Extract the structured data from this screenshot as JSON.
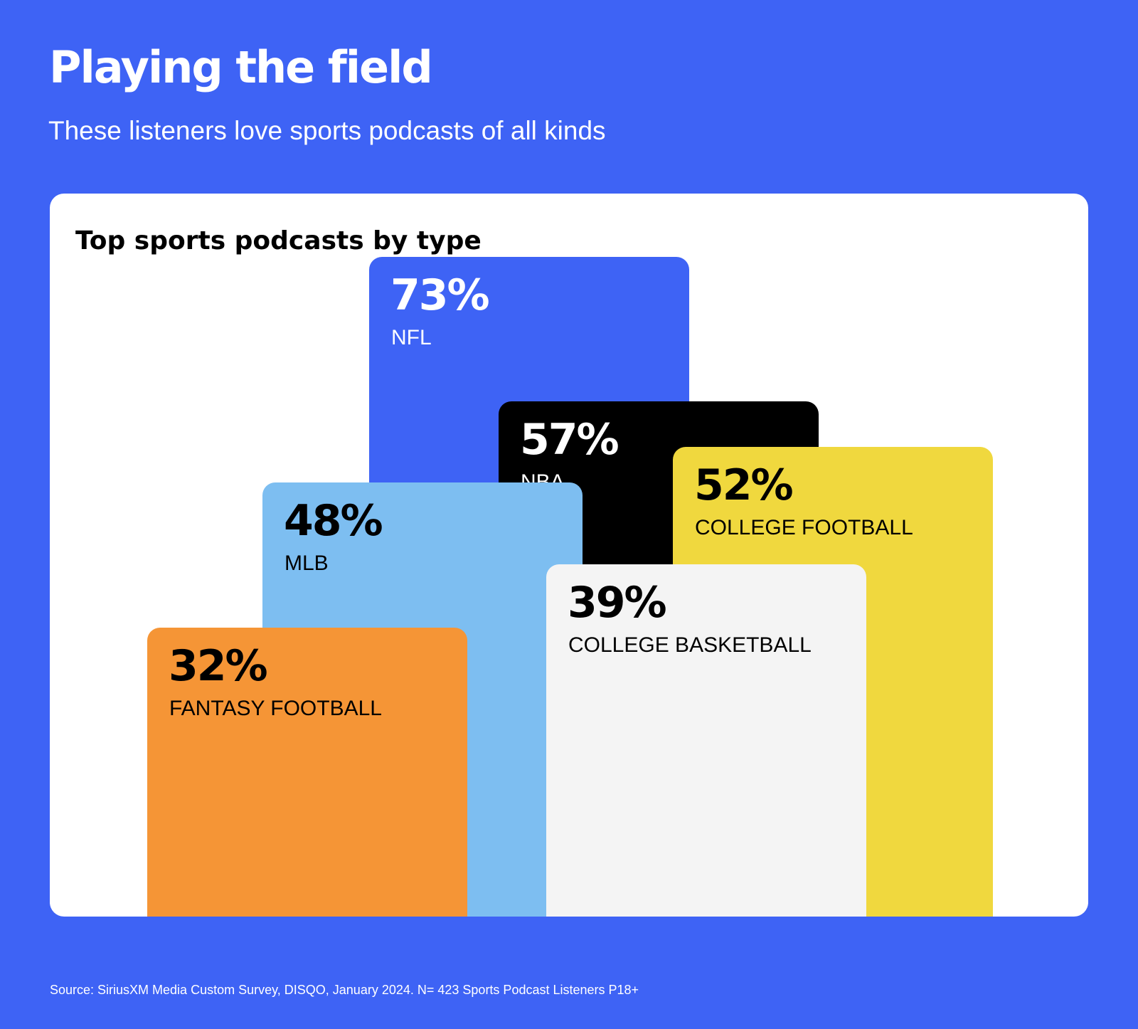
{
  "header": {
    "title": "Playing the field",
    "subtitle": "These listeners love sports podcasts of all kinds"
  },
  "chart_data": {
    "type": "bar",
    "title": "Top sports podcasts by type",
    "categories": [
      "NFL",
      "NBA",
      "COLLEGE FOOTBALL",
      "MLB",
      "FANTASY FOOTBALL",
      "COLLEGE BASKETBALL"
    ],
    "values": [
      73,
      57,
      52,
      48,
      32,
      39
    ],
    "value_labels": [
      "73%",
      "57%",
      "52%",
      "48%",
      "32%",
      "39%"
    ],
    "unit": "%",
    "colors": [
      "#3e63f5",
      "#000000",
      "#f0d83e",
      "#7dbef1",
      "#f59536",
      "#f4f4f4"
    ],
    "text_colors": [
      "#ffffff",
      "#ffffff",
      "#000000",
      "#000000",
      "#000000",
      "#000000"
    ],
    "grid": false,
    "legend": "none"
  },
  "footer": {
    "source": "Source: SiriusXM Media Custom Survey, DISQO, January 2024. N= 423 Sports Podcast Listeners P18+"
  }
}
